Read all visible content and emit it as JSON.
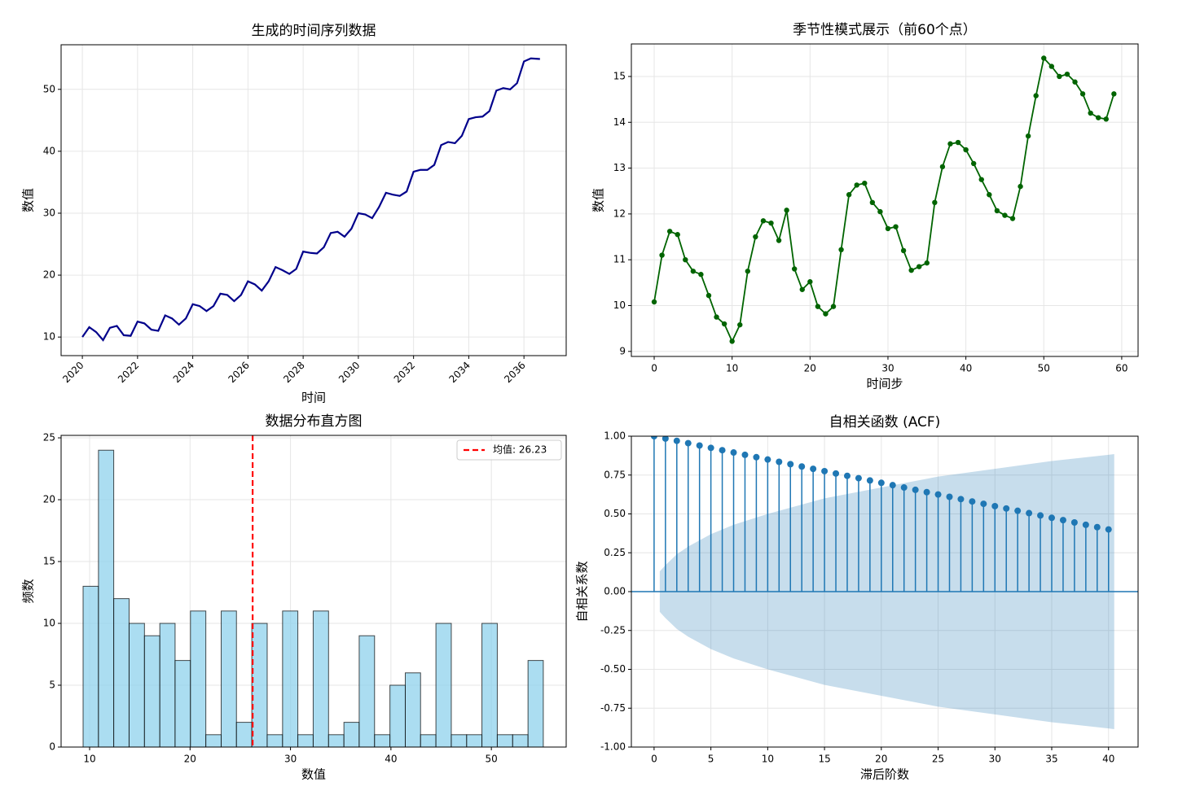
{
  "chart_data": [
    {
      "type": "line",
      "title": "生成的时间序列数据",
      "xlabel": "时间",
      "ylabel": "数值",
      "color": "#00008b",
      "grid": true,
      "markers": false,
      "x": [
        2020,
        2020.25,
        2020.5,
        2020.75,
        2021,
        2021.25,
        2021.5,
        2021.75,
        2022,
        2022.25,
        2022.5,
        2022.75,
        2023,
        2023.25,
        2023.5,
        2023.75,
        2024,
        2024.25,
        2024.5,
        2024.75,
        2025,
        2025.25,
        2025.5,
        2025.75,
        2026,
        2026.25,
        2026.5,
        2026.75,
        2027,
        2027.25,
        2027.5,
        2027.75,
        2028,
        2028.25,
        2028.5,
        2028.75,
        2029,
        2029.25,
        2029.5,
        2029.75,
        2030,
        2030.25,
        2030.5,
        2030.75,
        2031,
        2031.25,
        2031.5,
        2031.75,
        2032,
        2032.25,
        2032.5,
        2032.75,
        2033,
        2033.25,
        2033.5,
        2033.75,
        2034,
        2034.25,
        2034.5,
        2034.75,
        2035,
        2035.25,
        2035.5,
        2035.75,
        2036,
        2036.25,
        2036.58
      ],
      "values": [
        10,
        11.6,
        10.8,
        9.5,
        11.5,
        11.8,
        10.3,
        10.2,
        12.5,
        12.2,
        11.2,
        11.0,
        13.5,
        13.0,
        12.0,
        13.0,
        15.3,
        15.0,
        14.2,
        15.0,
        17.0,
        16.8,
        15.8,
        16.8,
        19.0,
        18.5,
        17.5,
        19.0,
        21.3,
        20.8,
        20.2,
        21.0,
        23.8,
        23.6,
        23.5,
        24.5,
        26.8,
        27.0,
        26.2,
        27.5,
        30.0,
        29.8,
        29.2,
        31.0,
        33.3,
        33.0,
        32.8,
        33.5,
        36.7,
        37.0,
        37.0,
        37.8,
        41.0,
        41.5,
        41.3,
        42.5,
        45.2,
        45.5,
        45.6,
        46.5,
        49.8,
        50.2,
        50.0,
        51.0,
        54.5,
        55.0,
        54.9
      ],
      "xlim": [
        2019.23,
        2037.53
      ],
      "xticks": [
        2020,
        2022,
        2024,
        2026,
        2028,
        2030,
        2032,
        2034,
        2036
      ],
      "ylim": [
        7,
        57.2
      ],
      "yticks": [
        10,
        20,
        30,
        40,
        50
      ]
    },
    {
      "type": "line",
      "title": "季节性模式展示（前60个点）",
      "xlabel": "时间步",
      "ylabel": "数值",
      "color": "#006400",
      "grid": true,
      "markers": true,
      "x": [
        0,
        1,
        2,
        3,
        4,
        5,
        6,
        7,
        8,
        9,
        10,
        11,
        12,
        13,
        14,
        15,
        16,
        17,
        18,
        19,
        20,
        21,
        22,
        23,
        24,
        25,
        26,
        27,
        28,
        29,
        30,
        31,
        32,
        33,
        34,
        35,
        36,
        37,
        38,
        39,
        40,
        41,
        42,
        43,
        44,
        45,
        46,
        47,
        48,
        49,
        50,
        51,
        52,
        53,
        54,
        55,
        56,
        57,
        58,
        59
      ],
      "values": [
        10.08,
        11.1,
        11.62,
        11.55,
        11.0,
        10.75,
        10.68,
        10.22,
        9.75,
        9.6,
        9.22,
        9.58,
        10.75,
        11.5,
        11.85,
        11.8,
        11.42,
        12.08,
        10.8,
        10.35,
        10.52,
        9.98,
        9.82,
        9.98,
        11.22,
        12.42,
        12.63,
        12.67,
        12.25,
        12.05,
        11.68,
        11.72,
        11.2,
        10.77,
        10.85,
        10.93,
        12.25,
        13.03,
        13.53,
        13.56,
        13.4,
        13.1,
        12.75,
        12.42,
        12.07,
        11.97,
        11.9,
        12.6,
        13.7,
        14.58,
        15.4,
        15.22,
        15.0,
        15.05,
        14.88,
        14.62,
        14.2,
        14.1,
        14.07,
        14.62
      ],
      "xlim": [
        -2.93,
        62.1
      ],
      "xticks": [
        0,
        10,
        20,
        30,
        40,
        50,
        60
      ],
      "ylim": [
        8.89,
        15.71
      ],
      "yticks": [
        9,
        10,
        11,
        12,
        13,
        14,
        15
      ]
    },
    {
      "type": "histogram",
      "title": "数据分布直方图",
      "xlabel": "数值",
      "ylabel": "频数",
      "color": "#87ceeb",
      "edgecolor": "#000000",
      "grid": true,
      "bins": [
        9.35,
        10.88,
        12.4,
        13.93,
        15.46,
        16.99,
        18.51,
        20.04,
        21.57,
        23.1,
        24.62,
        26.15,
        27.68,
        29.21,
        30.73,
        32.26,
        33.79,
        35.32,
        36.84,
        38.37,
        39.9,
        41.43,
        42.95,
        44.48,
        46.01,
        47.54,
        49.06,
        50.59,
        52.12,
        53.65,
        55.17
      ],
      "counts": [
        13,
        24,
        12,
        10,
        9,
        10,
        7,
        11,
        1,
        11,
        2,
        10,
        1,
        11,
        1,
        11,
        1,
        2,
        9,
        1,
        5,
        6,
        1,
        10,
        1,
        1,
        10,
        1,
        1,
        7
      ],
      "mean_line": {
        "value": 26.23,
        "label": "均值: 26.23",
        "color": "#ff0000"
      },
      "legend": "upper right",
      "xlim": [
        7.16,
        57.45
      ],
      "xticks": [
        10,
        20,
        30,
        40,
        50
      ],
      "ylim": [
        0,
        25.2
      ],
      "yticks": [
        0,
        5,
        10,
        15,
        20,
        25
      ]
    },
    {
      "type": "stem",
      "title": "自相关函数 (ACF)",
      "xlabel": "滞后阶数",
      "ylabel": "自相关系数",
      "color": "#1f77b4",
      "grid": true,
      "x": [
        0,
        1,
        2,
        3,
        4,
        5,
        6,
        7,
        8,
        9,
        10,
        11,
        12,
        13,
        14,
        15,
        16,
        17,
        18,
        19,
        20,
        21,
        22,
        23,
        24,
        25,
        26,
        27,
        28,
        29,
        30,
        31,
        32,
        33,
        34,
        35,
        36,
        37,
        38,
        39,
        40
      ],
      "values": [
        1.0,
        0.985,
        0.97,
        0.955,
        0.94,
        0.925,
        0.91,
        0.895,
        0.88,
        0.865,
        0.85,
        0.835,
        0.82,
        0.805,
        0.79,
        0.775,
        0.76,
        0.745,
        0.73,
        0.715,
        0.7,
        0.685,
        0.67,
        0.655,
        0.64,
        0.625,
        0.61,
        0.595,
        0.58,
        0.565,
        0.55,
        0.535,
        0.52,
        0.505,
        0.49,
        0.475,
        0.46,
        0.445,
        0.43,
        0.415,
        0.4
      ],
      "confidence": {
        "x": [
          0.5,
          1,
          2,
          3,
          5,
          7,
          10,
          15,
          20,
          25,
          30,
          35,
          40,
          40.5
        ],
        "upper": [
          0.13,
          0.17,
          0.24,
          0.29,
          0.37,
          0.43,
          0.5,
          0.6,
          0.67,
          0.74,
          0.79,
          0.84,
          0.88,
          0.885
        ],
        "lower": [
          -0.13,
          -0.17,
          -0.24,
          -0.29,
          -0.37,
          -0.43,
          -0.5,
          -0.6,
          -0.67,
          -0.74,
          -0.79,
          -0.84,
          -0.88,
          -0.885
        ]
      },
      "xlim": [
        -2.0,
        42.6
      ],
      "xticks": [
        0,
        5,
        10,
        15,
        20,
        25,
        30,
        35,
        40
      ],
      "ylim": [
        -1,
        1
      ],
      "yticks": [
        {
          "value": -1,
          "label": "-1.00"
        },
        {
          "value": -0.75,
          "label": "-0.75"
        },
        {
          "value": -0.5,
          "label": "-0.50"
        },
        {
          "value": -0.25,
          "label": "-0.25"
        },
        {
          "value": 0,
          "label": "0.00"
        },
        {
          "value": 0.25,
          "label": "0.25"
        },
        {
          "value": 0.5,
          "label": "0.50"
        },
        {
          "value": 0.75,
          "label": "0.75"
        },
        {
          "value": 1,
          "label": "1.00"
        }
      ]
    }
  ]
}
